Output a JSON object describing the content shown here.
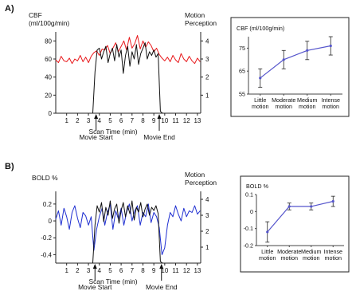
{
  "chart_data": [
    {
      "panel_label": "A)",
      "type": "line",
      "left_ylabel_lines": [
        "CBF",
        "(ml/100g/min)"
      ],
      "right_ylabel_lines": [
        "Motion",
        "Perception"
      ],
      "xlabel": "Scan Time (min)",
      "xticks": [
        1,
        2,
        3,
        4,
        5,
        6,
        7,
        8,
        9,
        10,
        11,
        12,
        13
      ],
      "yticks_left": [
        0,
        20,
        40,
        60,
        80
      ],
      "yticks_right": [
        1,
        2,
        3,
        4
      ],
      "ylim_left": [
        0,
        90
      ],
      "ylim_right": [
        0,
        4.5
      ],
      "xlim": [
        0,
        13.3
      ],
      "annotations": [
        {
          "text": "Movie Start",
          "x": 3.7
        },
        {
          "text": "Movie End",
          "x": 9.5
        }
      ],
      "series": [
        {
          "color": "#e8191c",
          "axis": "left",
          "x": [
            0,
            0.25,
            0.5,
            0.75,
            1,
            1.25,
            1.5,
            1.75,
            2,
            2.25,
            2.5,
            2.75,
            3,
            3.25,
            3.5,
            3.75,
            4,
            4.25,
            4.5,
            4.75,
            5,
            5.25,
            5.5,
            5.75,
            6,
            6.25,
            6.5,
            6.75,
            7,
            7.25,
            7.5,
            7.75,
            8,
            8.25,
            8.5,
            8.75,
            9,
            9.25,
            9.5,
            9.75,
            10,
            10.25,
            10.5,
            10.75,
            11,
            11.25,
            11.5,
            11.75,
            12,
            12.25,
            12.5,
            12.75,
            13,
            13.25
          ],
          "y": [
            59,
            56,
            63,
            58,
            57,
            61,
            55,
            60,
            58,
            64,
            57,
            62,
            56,
            63,
            67,
            69,
            64,
            71,
            70,
            75,
            66,
            72,
            78,
            68,
            74,
            80,
            70,
            84,
            72,
            77,
            86,
            71,
            80,
            73,
            79,
            75,
            68,
            72,
            65,
            61,
            58,
            62,
            57,
            64,
            59,
            56,
            66,
            60,
            57,
            63,
            58,
            55,
            61,
            57
          ]
        },
        {
          "color": "#111111",
          "axis": "right",
          "x": [
            3.4,
            3.6,
            3.8,
            4,
            4.2,
            4.4,
            4.6,
            4.8,
            5,
            5.2,
            5.4,
            5.6,
            5.8,
            6,
            6.2,
            6.4,
            6.6,
            6.8,
            7,
            7.2,
            7.4,
            7.6,
            7.8,
            8,
            8.2,
            8.4,
            8.6,
            8.8,
            9,
            9.2,
            9.4,
            9.6,
            9.8
          ],
          "y": [
            0,
            2.3,
            3.5,
            3.6,
            3.0,
            3.4,
            3.7,
            2.8,
            3.3,
            3.6,
            2.9,
            3.8,
            3.1,
            3.5,
            2.2,
            3.2,
            3.7,
            2.6,
            3.4,
            3.0,
            3.8,
            2.7,
            3.3,
            3.6,
            3.9,
            3.0,
            3.4,
            3.2,
            3.5,
            3.1,
            3.3,
            0.1,
            0
          ]
        }
      ]
    },
    {
      "type": "line",
      "title": "CBF (ml/100g/min)",
      "categories": [
        "Little motion",
        "Moderate motion",
        "Medium motion",
        "Intense motion"
      ],
      "values": [
        62,
        70,
        74,
        76
      ],
      "error": [
        4,
        4,
        4,
        4
      ],
      "ylim": [
        55,
        80
      ],
      "yticks": [
        55,
        65,
        75
      ],
      "color": "#5555cc"
    },
    {
      "panel_label": "B)",
      "type": "line",
      "left_ylabel_lines": [
        "BOLD %"
      ],
      "right_ylabel_lines": [
        "Motion",
        "Perception"
      ],
      "xlabel": "Scan Time (min)",
      "xticks": [
        1,
        2,
        3,
        4,
        5,
        6,
        7,
        8,
        9,
        10,
        11,
        12,
        13
      ],
      "yticks_left": [
        -0.4,
        -0.2,
        0,
        0.2
      ],
      "yticks_right": [
        1,
        2,
        3,
        4
      ],
      "ylim_left": [
        -0.5,
        0.35
      ],
      "ylim_right": [
        0,
        4.5
      ],
      "xlim": [
        0,
        13.3
      ],
      "annotations": [
        {
          "text": "Movie Start",
          "x": 3.6
        },
        {
          "text": "Movie End",
          "x": 9.7
        }
      ],
      "series": [
        {
          "color": "#1f2fd1",
          "axis": "left",
          "x": [
            0,
            0.25,
            0.5,
            0.75,
            1,
            1.25,
            1.5,
            1.75,
            2,
            2.25,
            2.5,
            2.75,
            3,
            3.25,
            3.5,
            3.75,
            4,
            4.25,
            4.5,
            4.75,
            5,
            5.25,
            5.5,
            5.75,
            6,
            6.25,
            6.5,
            6.75,
            7,
            7.25,
            7.5,
            7.75,
            8,
            8.25,
            8.5,
            8.75,
            9,
            9.25,
            9.5,
            9.75,
            10,
            10.25,
            10.5,
            10.75,
            11,
            11.25,
            11.5,
            11.75,
            12,
            12.25,
            12.5,
            12.75,
            13,
            13.25
          ],
          "y": [
            0.02,
            0.12,
            -0.05,
            0.15,
            0.05,
            -0.1,
            0.1,
            0.18,
            0.03,
            -0.08,
            0.1,
            0.06,
            -0.05,
            0.05,
            -0.35,
            -0.1,
            0.05,
            0.15,
            -0.05,
            0.1,
            0.2,
            -0.1,
            0.12,
            0.02,
            0.15,
            -0.05,
            0.1,
            0.2,
            0.0,
            0.12,
            0.18,
            -0.05,
            0.1,
            0.05,
            0.2,
            -0.02,
            0.1,
            0.05,
            -0.08,
            -0.4,
            -0.32,
            -0.05,
            0.1,
            0.05,
            0.18,
            0.08,
            0.0,
            0.15,
            0.05,
            0.12,
            0.1,
            0.18,
            0.08,
            0.12
          ]
        },
        {
          "color": "#111111",
          "axis": "right",
          "x": [
            3.4,
            3.6,
            3.8,
            4,
            4.2,
            4.4,
            4.6,
            4.8,
            5,
            5.2,
            5.4,
            5.6,
            5.8,
            6,
            6.2,
            6.4,
            6.6,
            6.8,
            7,
            7.2,
            7.4,
            7.6,
            7.8,
            8,
            8.2,
            8.4,
            8.6,
            8.8,
            9,
            9.2,
            9.4,
            9.6,
            9.8
          ],
          "y": [
            0,
            2.4,
            3.6,
            3.2,
            3.8,
            2.6,
            3.5,
            3.0,
            3.9,
            2.8,
            3.4,
            3.7,
            2.5,
            3.3,
            3.8,
            2.9,
            3.6,
            3.1,
            3.9,
            2.7,
            3.5,
            3.2,
            3.8,
            2.9,
            3.4,
            3.7,
            3.0,
            3.5,
            3.3,
            3.6,
            3.1,
            0.1,
            0
          ]
        }
      ]
    },
    {
      "type": "line",
      "title": "BOLD %",
      "categories": [
        "Little motion",
        "Moderate motion",
        "Medium motion",
        "Intense motion"
      ],
      "values": [
        -0.12,
        0.03,
        0.03,
        0.06
      ],
      "error": [
        0.06,
        0.02,
        0.02,
        0.03
      ],
      "ylim": [
        -0.2,
        0.1
      ],
      "yticks": [
        -0.2,
        -0.1,
        0,
        0.1
      ],
      "color": "#5555cc"
    }
  ]
}
